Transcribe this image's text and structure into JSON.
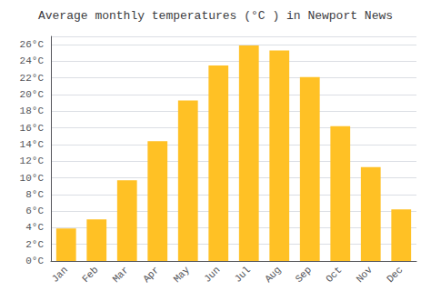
{
  "chart_data": {
    "type": "bar",
    "title": "Average monthly temperatures (°C ) in Newport News",
    "categories": [
      "Jan",
      "Feb",
      "Mar",
      "Apr",
      "May",
      "Jun",
      "Jul",
      "Aug",
      "Sep",
      "Oct",
      "Nov",
      "Dec"
    ],
    "values": [
      3.9,
      5.0,
      9.7,
      14.4,
      19.3,
      23.5,
      25.9,
      25.3,
      22.1,
      16.2,
      11.3,
      6.2
    ],
    "color": "#FFC125",
    "ylim": [
      0,
      27
    ],
    "yticks": [
      {
        "value": 0,
        "label": "0°C"
      },
      {
        "value": 2,
        "label": "2°C"
      },
      {
        "value": 4,
        "label": "4°C"
      },
      {
        "value": 6,
        "label": "6°C"
      },
      {
        "value": 8,
        "label": "8°C"
      },
      {
        "value": 10,
        "label": "10°C"
      },
      {
        "value": 12,
        "label": "12°C"
      },
      {
        "value": 14,
        "label": "14°C"
      },
      {
        "value": 16,
        "label": "16°C"
      },
      {
        "value": 18,
        "label": "18°C"
      },
      {
        "value": 20,
        "label": "20°C"
      },
      {
        "value": 22,
        "label": "22°C"
      },
      {
        "value": 24,
        "label": "24°C"
      },
      {
        "value": 26,
        "label": "26°C"
      }
    ],
    "grid": true
  }
}
